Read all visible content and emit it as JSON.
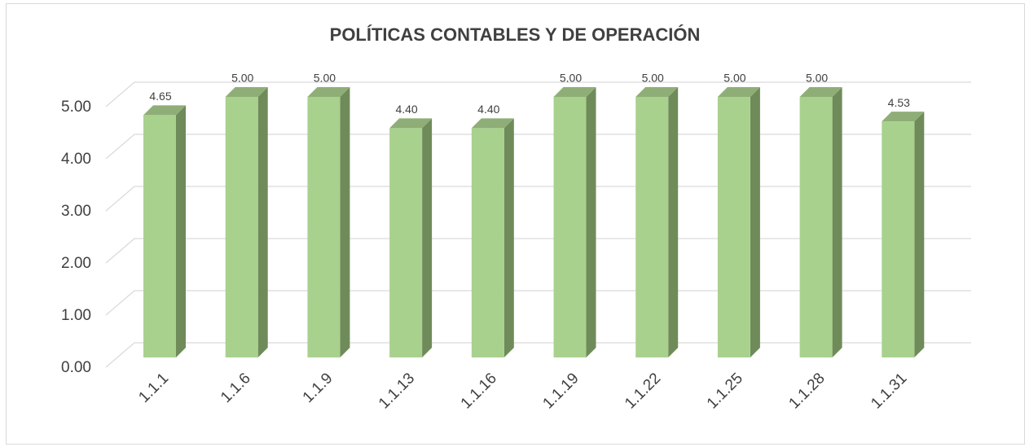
{
  "chart_data": {
    "type": "bar3d",
    "title": "POLÍTICAS CONTABLES Y DE OPERACIÓN",
    "categories": [
      "1.1.1",
      "1.1.6",
      "1.1.9",
      "1.1.13",
      "1.1.16",
      "1.1.19",
      "1.1.22",
      "1.1.25",
      "1.1.28",
      "1.1.31"
    ],
    "values": [
      4.65,
      5,
      5,
      4.4,
      4.4,
      5,
      5,
      5,
      5,
      4.53
    ],
    "value_labels": [
      "4.65",
      "5.00",
      "5.00",
      "4.40",
      "4.40",
      "5.00",
      "5.00",
      "5.00",
      "5.00",
      "4.53"
    ],
    "color": "#a9d18e",
    "ylim": [
      0,
      5
    ],
    "yticks": [
      {
        "value": 0,
        "label": "0.00"
      },
      {
        "value": 1,
        "label": "1.00"
      },
      {
        "value": 2,
        "label": "2.00"
      },
      {
        "value": 3,
        "label": "3.00"
      },
      {
        "value": 4,
        "label": "4.00"
      },
      {
        "value": 5,
        "label": "5.00"
      }
    ],
    "grid": true
  }
}
